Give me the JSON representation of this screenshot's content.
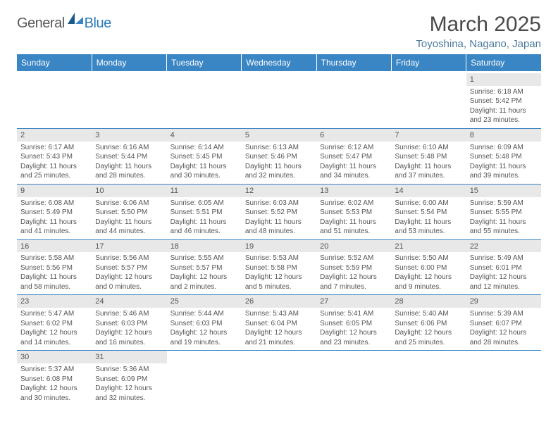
{
  "logo": {
    "part1": "General",
    "part2": "Blue"
  },
  "title": "March 2025",
  "location": "Toyoshina, Nagano, Japan",
  "header_bg": "#3a85c4",
  "days": [
    "Sunday",
    "Monday",
    "Tuesday",
    "Wednesday",
    "Thursday",
    "Friday",
    "Saturday"
  ],
  "weeks": [
    [
      null,
      null,
      null,
      null,
      null,
      null,
      {
        "n": "1",
        "sr": "Sunrise: 6:18 AM",
        "ss": "Sunset: 5:42 PM",
        "dl": "Daylight: 11 hours and 23 minutes."
      }
    ],
    [
      {
        "n": "2",
        "sr": "Sunrise: 6:17 AM",
        "ss": "Sunset: 5:43 PM",
        "dl": "Daylight: 11 hours and 25 minutes."
      },
      {
        "n": "3",
        "sr": "Sunrise: 6:16 AM",
        "ss": "Sunset: 5:44 PM",
        "dl": "Daylight: 11 hours and 28 minutes."
      },
      {
        "n": "4",
        "sr": "Sunrise: 6:14 AM",
        "ss": "Sunset: 5:45 PM",
        "dl": "Daylight: 11 hours and 30 minutes."
      },
      {
        "n": "5",
        "sr": "Sunrise: 6:13 AM",
        "ss": "Sunset: 5:46 PM",
        "dl": "Daylight: 11 hours and 32 minutes."
      },
      {
        "n": "6",
        "sr": "Sunrise: 6:12 AM",
        "ss": "Sunset: 5:47 PM",
        "dl": "Daylight: 11 hours and 34 minutes."
      },
      {
        "n": "7",
        "sr": "Sunrise: 6:10 AM",
        "ss": "Sunset: 5:48 PM",
        "dl": "Daylight: 11 hours and 37 minutes."
      },
      {
        "n": "8",
        "sr": "Sunrise: 6:09 AM",
        "ss": "Sunset: 5:48 PM",
        "dl": "Daylight: 11 hours and 39 minutes."
      }
    ],
    [
      {
        "n": "9",
        "sr": "Sunrise: 6:08 AM",
        "ss": "Sunset: 5:49 PM",
        "dl": "Daylight: 11 hours and 41 minutes."
      },
      {
        "n": "10",
        "sr": "Sunrise: 6:06 AM",
        "ss": "Sunset: 5:50 PM",
        "dl": "Daylight: 11 hours and 44 minutes."
      },
      {
        "n": "11",
        "sr": "Sunrise: 6:05 AM",
        "ss": "Sunset: 5:51 PM",
        "dl": "Daylight: 11 hours and 46 minutes."
      },
      {
        "n": "12",
        "sr": "Sunrise: 6:03 AM",
        "ss": "Sunset: 5:52 PM",
        "dl": "Daylight: 11 hours and 48 minutes."
      },
      {
        "n": "13",
        "sr": "Sunrise: 6:02 AM",
        "ss": "Sunset: 5:53 PM",
        "dl": "Daylight: 11 hours and 51 minutes."
      },
      {
        "n": "14",
        "sr": "Sunrise: 6:00 AM",
        "ss": "Sunset: 5:54 PM",
        "dl": "Daylight: 11 hours and 53 minutes."
      },
      {
        "n": "15",
        "sr": "Sunrise: 5:59 AM",
        "ss": "Sunset: 5:55 PM",
        "dl": "Daylight: 11 hours and 55 minutes."
      }
    ],
    [
      {
        "n": "16",
        "sr": "Sunrise: 5:58 AM",
        "ss": "Sunset: 5:56 PM",
        "dl": "Daylight: 11 hours and 58 minutes."
      },
      {
        "n": "17",
        "sr": "Sunrise: 5:56 AM",
        "ss": "Sunset: 5:57 PM",
        "dl": "Daylight: 12 hours and 0 minutes."
      },
      {
        "n": "18",
        "sr": "Sunrise: 5:55 AM",
        "ss": "Sunset: 5:57 PM",
        "dl": "Daylight: 12 hours and 2 minutes."
      },
      {
        "n": "19",
        "sr": "Sunrise: 5:53 AM",
        "ss": "Sunset: 5:58 PM",
        "dl": "Daylight: 12 hours and 5 minutes."
      },
      {
        "n": "20",
        "sr": "Sunrise: 5:52 AM",
        "ss": "Sunset: 5:59 PM",
        "dl": "Daylight: 12 hours and 7 minutes."
      },
      {
        "n": "21",
        "sr": "Sunrise: 5:50 AM",
        "ss": "Sunset: 6:00 PM",
        "dl": "Daylight: 12 hours and 9 minutes."
      },
      {
        "n": "22",
        "sr": "Sunrise: 5:49 AM",
        "ss": "Sunset: 6:01 PM",
        "dl": "Daylight: 12 hours and 12 minutes."
      }
    ],
    [
      {
        "n": "23",
        "sr": "Sunrise: 5:47 AM",
        "ss": "Sunset: 6:02 PM",
        "dl": "Daylight: 12 hours and 14 minutes."
      },
      {
        "n": "24",
        "sr": "Sunrise: 5:46 AM",
        "ss": "Sunset: 6:03 PM",
        "dl": "Daylight: 12 hours and 16 minutes."
      },
      {
        "n": "25",
        "sr": "Sunrise: 5:44 AM",
        "ss": "Sunset: 6:03 PM",
        "dl": "Daylight: 12 hours and 19 minutes."
      },
      {
        "n": "26",
        "sr": "Sunrise: 5:43 AM",
        "ss": "Sunset: 6:04 PM",
        "dl": "Daylight: 12 hours and 21 minutes."
      },
      {
        "n": "27",
        "sr": "Sunrise: 5:41 AM",
        "ss": "Sunset: 6:05 PM",
        "dl": "Daylight: 12 hours and 23 minutes."
      },
      {
        "n": "28",
        "sr": "Sunrise: 5:40 AM",
        "ss": "Sunset: 6:06 PM",
        "dl": "Daylight: 12 hours and 25 minutes."
      },
      {
        "n": "29",
        "sr": "Sunrise: 5:39 AM",
        "ss": "Sunset: 6:07 PM",
        "dl": "Daylight: 12 hours and 28 minutes."
      }
    ],
    [
      {
        "n": "30",
        "sr": "Sunrise: 5:37 AM",
        "ss": "Sunset: 6:08 PM",
        "dl": "Daylight: 12 hours and 30 minutes."
      },
      {
        "n": "31",
        "sr": "Sunrise: 5:36 AM",
        "ss": "Sunset: 6:09 PM",
        "dl": "Daylight: 12 hours and 32 minutes."
      },
      null,
      null,
      null,
      null,
      null
    ]
  ]
}
